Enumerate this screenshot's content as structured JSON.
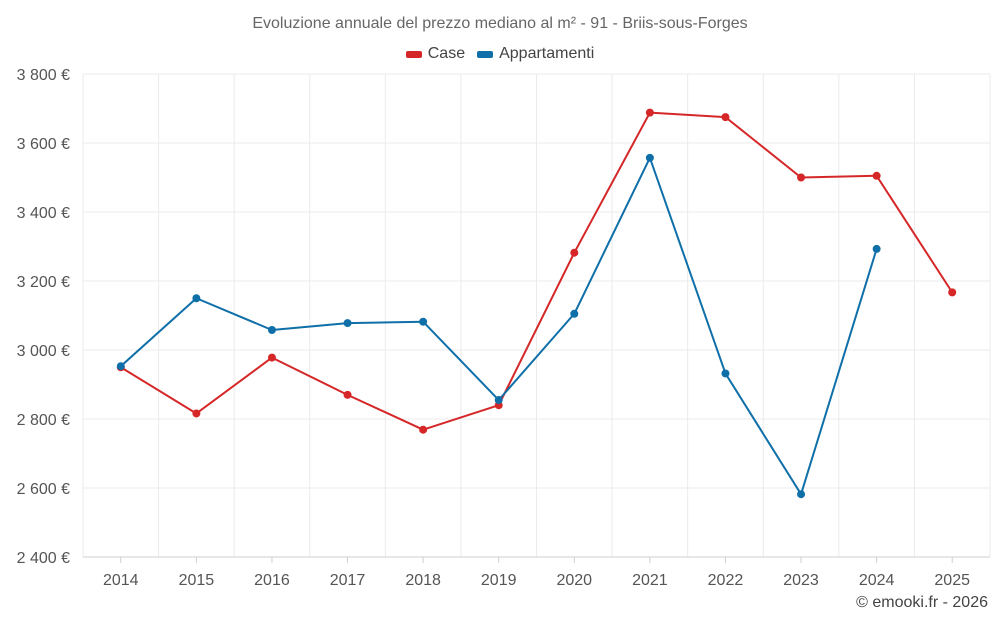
{
  "chart_data": {
    "type": "line",
    "title": "Evoluzione annuale del prezzo mediano al m² - 91 - Briis-sous-Forges",
    "categories": [
      "2014",
      "2015",
      "2016",
      "2017",
      "2018",
      "2019",
      "2020",
      "2021",
      "2022",
      "2023",
      "2024",
      "2025"
    ],
    "ylim": [
      2400,
      3800
    ],
    "yticks": [
      2400,
      2600,
      2800,
      3000,
      3200,
      3400,
      3600,
      3800
    ],
    "ytick_labels": [
      "2 400 €",
      "2 600 €",
      "2 800 €",
      "3 000 €",
      "3 200 €",
      "3 400 €",
      "3 600 €",
      "3 800 €"
    ],
    "grid": true,
    "legend": "top-center",
    "series": [
      {
        "name": "Case",
        "color": "#d62728",
        "values": [
          2950,
          2816,
          2978,
          2870,
          2769,
          2840,
          3282,
          3688,
          3675,
          3500,
          3505,
          3167
        ]
      },
      {
        "name": "Appartamenti",
        "color": "#0f6fa8",
        "values": [
          2953,
          3150,
          3058,
          3078,
          3082,
          2855,
          3105,
          3557,
          2932,
          2582,
          3293,
          null
        ]
      }
    ]
  },
  "credit": "© emooki.fr - 2026"
}
